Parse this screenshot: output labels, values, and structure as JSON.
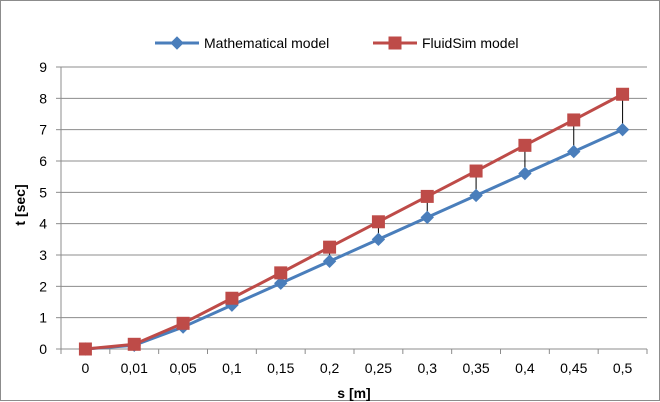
{
  "chart_data": {
    "type": "line",
    "title": "",
    "xlabel": "s [m]",
    "ylabel": "t [sec]",
    "categories": [
      "0",
      "0,01",
      "0,05",
      "0,1",
      "0,15",
      "0,2",
      "0,25",
      "0,3",
      "0,35",
      "0,4",
      "0,45",
      "0,5"
    ],
    "ylim": [
      0,
      9
    ],
    "yticks": [
      "0",
      "1",
      "2",
      "3",
      "4",
      "5",
      "6",
      "7",
      "8",
      "9"
    ],
    "grid": true,
    "legend_position": "top",
    "series": [
      {
        "name": "Mathematical model",
        "color": "#4a7ebb",
        "marker": "diamond",
        "values": [
          0,
          0.12,
          0.7,
          1.4,
          2.1,
          2.8,
          3.5,
          4.2,
          4.9,
          5.6,
          6.3,
          7.0
        ]
      },
      {
        "name": "FluidSim model",
        "color": "#be4b48",
        "marker": "square",
        "values": [
          0,
          0.15,
          0.82,
          1.62,
          2.43,
          3.25,
          4.06,
          4.87,
          5.68,
          6.5,
          7.31,
          8.13
        ]
      }
    ]
  }
}
